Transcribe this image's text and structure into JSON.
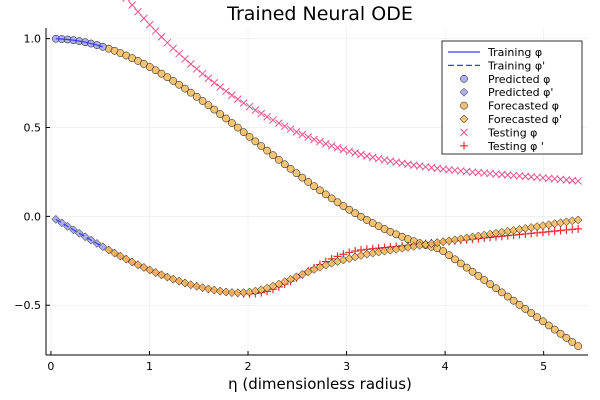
{
  "chart_data": {
    "type": "scatter",
    "title": "Trained Neural ODE",
    "xlabel": "η (dimensionless radius)",
    "ylabel": "",
    "xlim": [
      -0.05,
      5.45
    ],
    "ylim": [
      -0.78,
      1.06
    ],
    "xticks": [
      0,
      1,
      2,
      3,
      4,
      5
    ],
    "xtick_labels": [
      "0",
      "1",
      "2",
      "3",
      "4",
      "5"
    ],
    "yticks": [
      -0.5,
      0.0,
      0.5,
      1.0
    ],
    "ytick_labels": [
      "−0.5",
      "0.0",
      "0.5",
      "1.0"
    ],
    "grid": true,
    "legend_position": "top-right",
    "x_range": {
      "start": 0.05,
      "end": 5.35,
      "points": 90,
      "train_end": 0.55,
      "forecast_start": 0.55
    },
    "series": [
      {
        "name": "Training φ",
        "kind": "line",
        "style": "solid",
        "color": "#3a3af0",
        "quantity": "phi",
        "segment": "train"
      },
      {
        "name": "Training φ'",
        "kind": "line",
        "style": "dashed",
        "color": "#3a3af0",
        "quantity": "dphi",
        "segment": "train"
      },
      {
        "name": "Predicted φ",
        "kind": "marker",
        "marker": "circle",
        "color": "#9fa3ee",
        "quantity": "phi",
        "segment": "train"
      },
      {
        "name": "Predicted φ'",
        "kind": "marker",
        "marker": "diamond",
        "color": "#9fa3ee",
        "quantity": "dphi",
        "segment": "train"
      },
      {
        "name": "Forecasted φ",
        "kind": "marker",
        "marker": "circle",
        "color": "#f4b85b",
        "quantity": "phi_forecast",
        "segment": "forecast"
      },
      {
        "name": "Forecasted φ'",
        "kind": "marker",
        "marker": "diamond",
        "color": "#f4b85b",
        "quantity": "dphi_forecast",
        "segment": "forecast"
      },
      {
        "name": "Testing φ",
        "kind": "marker",
        "marker": "x",
        "color": "#e8508e",
        "quantity": "phi",
        "segment": "forecast"
      },
      {
        "name": "Testing φ '",
        "kind": "marker",
        "marker": "plus",
        "color": "#ee3030",
        "quantity": "dphi",
        "segment": "forecast"
      }
    ],
    "keypoints": {
      "phi_forecast_end": -0.73,
      "dphi_forecast_end": -0.02,
      "phi_test_end": 0.1,
      "dphi_test_end": -0.07,
      "dphi_min": -0.28
    }
  }
}
